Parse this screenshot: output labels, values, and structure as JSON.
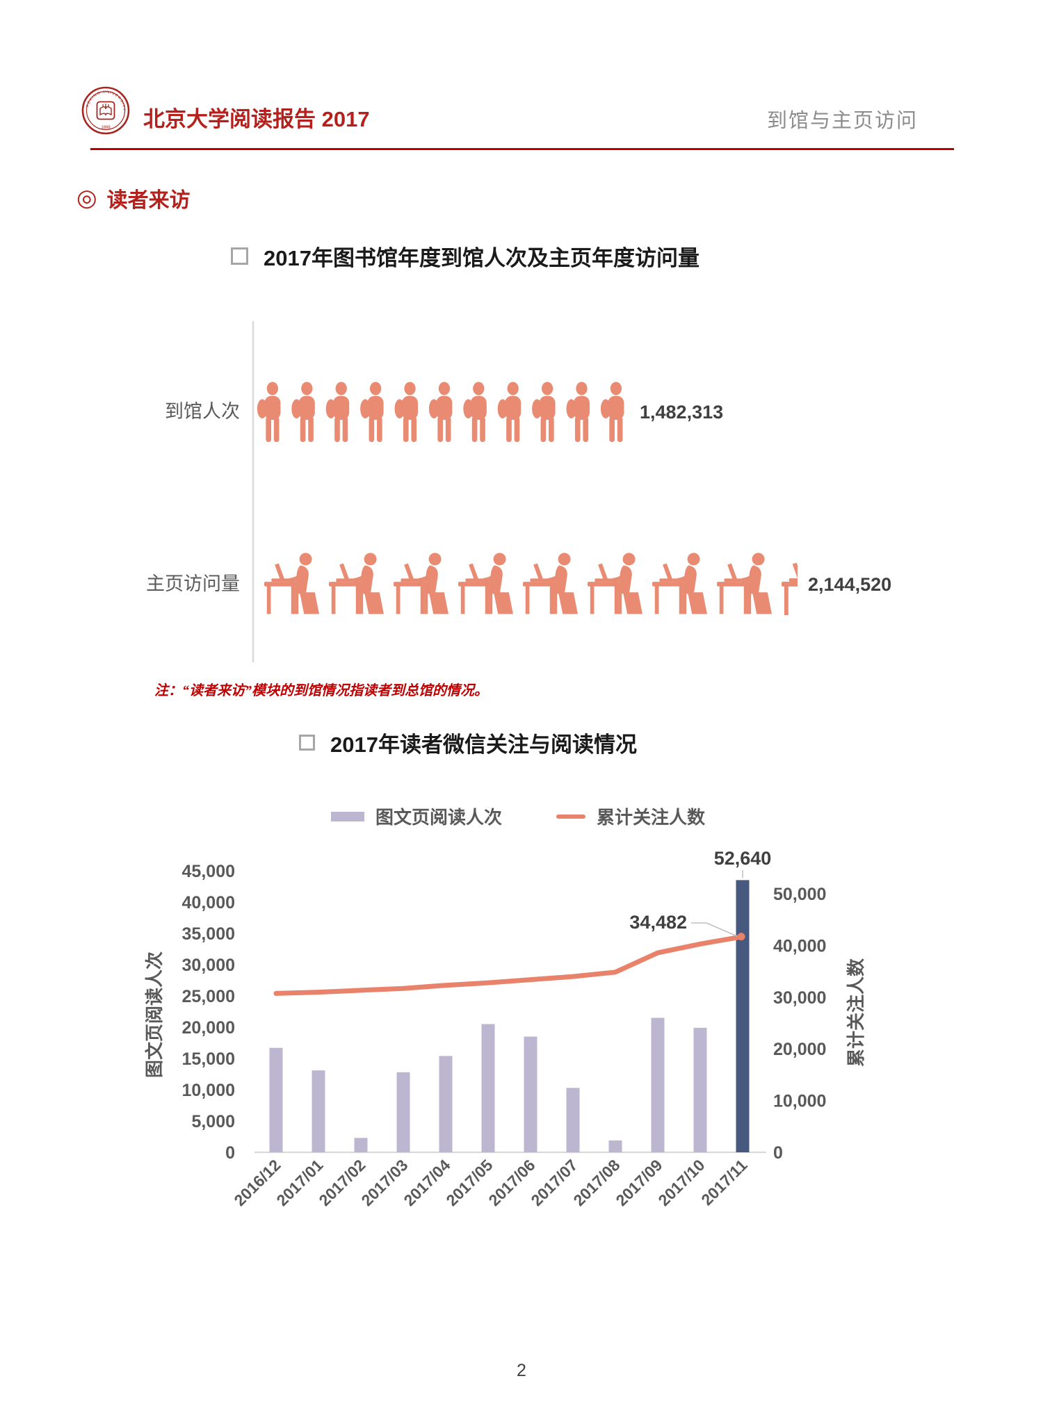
{
  "header": {
    "title": "北京大学阅读报告 2017",
    "section_label": "到馆与主页访问",
    "accent_color": "#C00000",
    "seal": {
      "ring_text": "PEKING UNIVERSITY LIBRARY",
      "year": "1898"
    }
  },
  "section": {
    "bullet": "◎",
    "title": "读者来访"
  },
  "chart1": {
    "title": "2017年图书馆年度到馆人次及主页年度访问量",
    "icon_color": "#E98B72",
    "rows": [
      {
        "label": "到馆人次",
        "value": "1,482,313",
        "icon": "person-standing-icon",
        "icons_full": 11,
        "icon_partial": 0
      },
      {
        "label": "主页访问量",
        "value": "2,144,520",
        "icon": "person-at-computer-icon",
        "icons_full": 8,
        "icon_partial": 0.26
      }
    ]
  },
  "note": "注：“读者来访”模块的到馆情况指读者到总馆的情况。",
  "chart2": {
    "title": "2017年读者微信关注与阅读情况"
  },
  "chart_data": {
    "type": "combo (bar + line)",
    "categories": [
      "2016/12",
      "2017/01",
      "2017/02",
      "2017/03",
      "2017/04",
      "2017/05",
      "2017/06",
      "2017/07",
      "2017/08",
      "2017/09",
      "2017/10",
      "2017/11"
    ],
    "bar_series": {
      "name": "图文页阅读人次",
      "color": "#BDB6D1",
      "highlight_color": "#47597E",
      "highlight_index": 11,
      "highlight_axis": "right",
      "values": [
        16700,
        13100,
        2300,
        12800,
        15400,
        20500,
        18500,
        10300,
        1900,
        21500,
        19900,
        52640
      ]
    },
    "line_series": {
      "name": "累计关注人数",
      "color": "#E8826A",
      "values": [
        25400,
        25600,
        25900,
        26200,
        26700,
        27100,
        27600,
        28100,
        28800,
        31900,
        33300,
        34482
      ]
    },
    "left_axis": {
      "title": "图文页阅读人次",
      "min": 0,
      "max": 45000,
      "step": 5000,
      "ticks": [
        "0",
        "5,000",
        "10,000",
        "15,000",
        "20,000",
        "25,000",
        "30,000",
        "35,000",
        "40,000",
        "45,000"
      ]
    },
    "right_axis": {
      "title": "累计关注人数",
      "min": 0,
      "max": 50000,
      "step": 10000,
      "ticks": [
        "0",
        "10,000",
        "20,000",
        "30,000",
        "40,000",
        "50,000"
      ]
    },
    "annotations": {
      "bar_label": "52,640",
      "line_label": "34,482"
    },
    "grid": false,
    "legend_position": "top"
  },
  "footer": {
    "page": "2"
  }
}
